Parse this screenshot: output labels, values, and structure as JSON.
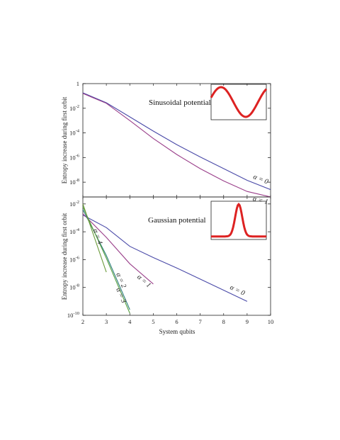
{
  "chart_data": [
    {
      "type": "line",
      "title": "",
      "ylabel": "Entropy increase during first orbit",
      "xlabel": "",
      "xlim": [
        2,
        10
      ],
      "ylog": true,
      "ylim_exp": [
        -9.2,
        0
      ],
      "yticks": [
        {
          "label": "1",
          "exp": 0
        },
        {
          "label": "10",
          "sup": "-2",
          "exp": -2
        },
        {
          "label": "10",
          "sup": "-4",
          "exp": -4
        },
        {
          "label": "10",
          "sup": "-6",
          "exp": -6
        },
        {
          "label": "10",
          "sup": "-8",
          "exp": -8
        }
      ],
      "inset_label": "Sinusoidal potential",
      "inset_shape": "sine",
      "inset_color": "#dd2222",
      "series": [
        {
          "label": "α = 0",
          "color": "#4a4aa8",
          "x": [
            2,
            3,
            4,
            5,
            6,
            7,
            8,
            9,
            10
          ],
          "y_exp": [
            -0.75,
            -1.55,
            -2.7,
            -3.85,
            -4.95,
            -5.95,
            -6.9,
            -7.85,
            -8.6
          ]
        },
        {
          "label": "α = 1",
          "color": "#9a3f8a",
          "x": [
            2,
            3,
            4,
            5,
            6,
            7,
            8,
            9,
            10
          ],
          "y_exp": [
            -0.8,
            -1.6,
            -3.0,
            -4.45,
            -5.75,
            -6.9,
            -7.9,
            -8.75,
            -9.2
          ]
        }
      ]
    },
    {
      "type": "line",
      "title": "",
      "ylabel": "Entropy increase during first orbit",
      "xlabel": "System qubits",
      "xlim": [
        2,
        10
      ],
      "xticks": [
        "2",
        "3",
        "4",
        "5",
        "6",
        "7",
        "8",
        "9",
        "10"
      ],
      "ylog": true,
      "ylim_exp": [
        -10,
        -1.5
      ],
      "yticks": [
        {
          "label": "10",
          "sup": "-2",
          "exp": -2
        },
        {
          "label": "10",
          "sup": "-4",
          "exp": -4
        },
        {
          "label": "10",
          "sup": "-6",
          "exp": -6
        },
        {
          "label": "10",
          "sup": "-8",
          "exp": -8
        },
        {
          "label": "10",
          "sup": "-10",
          "exp": -10
        }
      ],
      "inset_label": "Gaussian potential",
      "inset_shape": "gaussian",
      "inset_color": "#dd2222",
      "series": [
        {
          "label": "α = 0",
          "color": "#4a4aa8",
          "x": [
            2,
            3,
            4,
            5,
            6,
            7,
            8,
            9
          ],
          "y_exp": [
            -2.8,
            -3.7,
            -5.05,
            -5.85,
            -6.6,
            -7.4,
            -8.2,
            -9.0
          ]
        },
        {
          "label": "α = 1",
          "color": "#9a3f8a",
          "x": [
            2,
            3,
            4,
            5
          ],
          "y_exp": [
            -2.7,
            -4.4,
            -6.3,
            -7.75
          ]
        },
        {
          "label": "α = 2",
          "color": "#2f7f7f",
          "x": [
            2,
            3,
            4
          ],
          "y_exp": [
            -2.4,
            -5.7,
            -9.6
          ]
        },
        {
          "label": "α = 3",
          "color": "#58a040",
          "x": [
            2,
            3,
            4
          ],
          "y_exp": [
            -2.2,
            -5.9,
            -9.85
          ]
        },
        {
          "label": "α = 4",
          "color": "#6a9a3a",
          "x": [
            2,
            3
          ],
          "y_exp": [
            -2.0,
            -6.9
          ]
        }
      ]
    }
  ]
}
